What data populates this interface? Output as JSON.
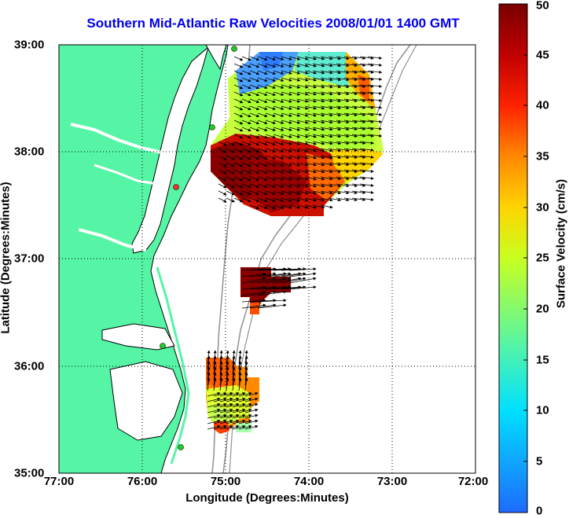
{
  "chart_data": {
    "type": "heatmap",
    "title": "Southern Mid-Atlantic Raw Velocities 2008/01/01 1400 GMT",
    "xlabel": "Longitude (Degrees:Minutes)",
    "ylabel": "Latitude (Degrees:Minutes)",
    "x_ticks": [
      "77:00",
      "76:00",
      "75:00",
      "74:00",
      "73:00",
      "72:00"
    ],
    "y_ticks": [
      "39:00",
      "38:00",
      "37:00",
      "36:00",
      "35:00"
    ],
    "xlim": [
      -77,
      -72
    ],
    "ylim": [
      35,
      39
    ],
    "grid": true,
    "colorbar": {
      "label": "Surface Velocity (cm/s)",
      "range": [
        0,
        50
      ],
      "ticks": [
        "50",
        "45",
        "40",
        "35",
        "30",
        "25",
        "20",
        "15",
        "10",
        "5",
        "0"
      ]
    },
    "colors": {
      "land": "#55f5a5",
      "coastline": "#000000",
      "bathymetry": "#909090",
      "grid": "#000000",
      "title": "#0000ee",
      "station_marker": "#22cc22",
      "station_marker_highlight": "#ff3030"
    }
  }
}
